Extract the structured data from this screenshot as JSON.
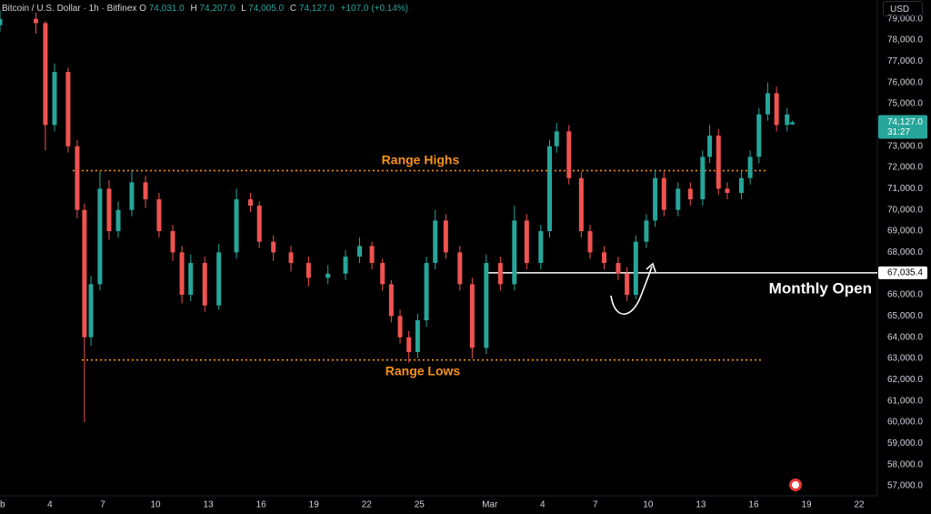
{
  "header": {
    "symbol": "Bitcoin / U.S. Dollar · 1h · Bitfinex",
    "ohlc": [
      {
        "label": "O",
        "value": "74,031.0"
      },
      {
        "label": "H",
        "value": "74,207.0"
      },
      {
        "label": "L",
        "value": "74,005.0"
      },
      {
        "label": "C",
        "value": "74,127.0"
      }
    ],
    "change": "+107.0 (+0.14%)"
  },
  "currency": "USD",
  "chart_data": {
    "type": "candlestick",
    "x": [
      0.16,
      2.2,
      2.74,
      3.26,
      4.03,
      4.55,
      4.96,
      5.33,
      5.84,
      6.36,
      6.88,
      7.65,
      8.43,
      9.2,
      9.98,
      10.5,
      11.0,
      11.8,
      12.6,
      13.6,
      14.4,
      14.9,
      15.7,
      16.7,
      17.7,
      18.8,
      19.8,
      20.6,
      21.3,
      21.9,
      22.4,
      22.9,
      23.4,
      23.9,
      24.4,
      24.9,
      25.5,
      26.3,
      27.0,
      27.8,
      28.6,
      29.4,
      30.1,
      30.9,
      31.4,
      31.8,
      32.5,
      33.2,
      33.7,
      34.5,
      35.3,
      35.8,
      36.3,
      36.9,
      37.4,
      37.9,
      38.7,
      39.4,
      40.1,
      40.5,
      41.0,
      41.5,
      42.3,
      42.8,
      43.3,
      43.8,
      44.3,
      44.9,
      45.2
    ],
    "open": [
      78700,
      79000,
      78800,
      74000,
      76500,
      73000,
      70000,
      64000,
      66500,
      71000,
      69000,
      70000,
      71300,
      70500,
      69000,
      68000,
      66000,
      67500,
      65500,
      68000,
      70500,
      70200,
      68500,
      68000,
      67500,
      66800,
      67000,
      67800,
      68300,
      67500,
      66500,
      65000,
      64000,
      63300,
      64800,
      67500,
      69500,
      68000,
      66500,
      63500,
      67500,
      66500,
      69500,
      67500,
      69000,
      73000,
      73700,
      71500,
      69000,
      68000,
      67500,
      67000,
      66000,
      68500,
      69500,
      71500,
      70000,
      71000,
      70500,
      72500,
      73500,
      71000,
      70800,
      71500,
      72500,
      74500,
      75500,
      74000,
      74031
    ],
    "high": [
      79400,
      79300,
      78900,
      76900,
      76700,
      73300,
      70300,
      66900,
      71800,
      71400,
      70400,
      71900,
      71600,
      70800,
      69300,
      68300,
      67900,
      67800,
      68400,
      71000,
      70800,
      70400,
      68800,
      68300,
      67800,
      67400,
      68100,
      68700,
      68500,
      67700,
      66700,
      65300,
      64300,
      65100,
      67800,
      70000,
      69800,
      68300,
      66800,
      67900,
      67800,
      70200,
      69800,
      69300,
      73300,
      74100,
      74000,
      71800,
      69300,
      68300,
      67800,
      67300,
      68800,
      69800,
      71900,
      71800,
      71300,
      71300,
      72800,
      74000,
      73800,
      71300,
      71800,
      72800,
      74800,
      76000,
      75800,
      74800,
      74207
    ],
    "low": [
      78400,
      78300,
      72800,
      73700,
      72700,
      69600,
      60000,
      63600,
      66200,
      68600,
      68700,
      69700,
      70100,
      68700,
      67600,
      65600,
      65700,
      65200,
      65300,
      67700,
      69900,
      68200,
      67600,
      67100,
      66400,
      66500,
      66700,
      67500,
      67200,
      66200,
      64700,
      63700,
      62800,
      63000,
      64500,
      67200,
      67700,
      66200,
      63000,
      63200,
      66200,
      66200,
      67200,
      67200,
      68700,
      72700,
      71200,
      68700,
      67700,
      67200,
      66700,
      65700,
      65800,
      68200,
      69200,
      69700,
      69700,
      70200,
      70200,
      72200,
      70700,
      70500,
      70500,
      71200,
      72200,
      74200,
      73700,
      73700,
      74005
    ],
    "close": [
      79000,
      78800,
      74000,
      76500,
      73000,
      70000,
      64000,
      66500,
      71000,
      69000,
      70000,
      71300,
      70500,
      69000,
      68000,
      66000,
      67500,
      65500,
      68000,
      70500,
      70200,
      68500,
      68000,
      67500,
      66800,
      67000,
      67800,
      68300,
      67500,
      66500,
      65000,
      64000,
      63300,
      64800,
      67500,
      69500,
      68000,
      66500,
      63500,
      67500,
      66500,
      69500,
      67500,
      69000,
      73000,
      73700,
      71500,
      69000,
      68000,
      67500,
      67000,
      66000,
      68500,
      69500,
      71500,
      70000,
      71000,
      70500,
      72500,
      73500,
      71000,
      70800,
      71500,
      72500,
      74500,
      75500,
      74000,
      74500,
      74127
    ],
    "up_color": "#26a69a",
    "down_color": "#ef5350",
    "xlim": [
      0.16,
      50.03
    ],
    "xticks": [
      {
        "value": 0,
        "label": "Feb"
      },
      {
        "value": 3,
        "label": "4"
      },
      {
        "value": 6,
        "label": "7"
      },
      {
        "value": 9,
        "label": "10"
      },
      {
        "value": 12,
        "label": "13"
      },
      {
        "value": 15,
        "label": "16"
      },
      {
        "value": 18,
        "label": "19"
      },
      {
        "value": 21,
        "label": "22"
      },
      {
        "value": 24,
        "label": "25"
      },
      {
        "value": 28,
        "label": "Mar"
      },
      {
        "value": 31,
        "label": "4"
      },
      {
        "value": 34,
        "label": "7"
      },
      {
        "value": 37,
        "label": "10"
      },
      {
        "value": 40,
        "label": "13"
      },
      {
        "value": 43,
        "label": "16"
      },
      {
        "value": 46,
        "label": "19"
      },
      {
        "value": 49,
        "label": "22"
      }
    ],
    "ylim": [
      56530,
      79890
    ],
    "yticks": [
      {
        "value": 57000,
        "label": "57,000.0"
      },
      {
        "value": 58000,
        "label": "58,000.0"
      },
      {
        "value": 59000,
        "label": "59,000.0"
      },
      {
        "value": 60000,
        "label": "60,000.0"
      },
      {
        "value": 61000,
        "label": "61,000.0"
      },
      {
        "value": 62000,
        "label": "62,000.0"
      },
      {
        "value": 63000,
        "label": "63,000.0"
      },
      {
        "value": 64000,
        "label": "64,000.0"
      },
      {
        "value": 65000,
        "label": "65,000.0"
      },
      {
        "value": 66000,
        "label": "66,000.0"
      },
      {
        "value": 67000,
        "label": "67,000.0"
      },
      {
        "value": 68000,
        "label": "68,000.0"
      },
      {
        "value": 69000,
        "label": "69,000.0"
      },
      {
        "value": 70000,
        "label": "70,000.0"
      },
      {
        "value": 71000,
        "label": "71,000.0"
      },
      {
        "value": 72000,
        "label": "72,000.0"
      },
      {
        "value": 73000,
        "label": "73,000.0"
      },
      {
        "value": 74000,
        "label": "74,000.0"
      },
      {
        "value": 75000,
        "label": "75,000.0"
      },
      {
        "value": 76000,
        "label": "76,000.0"
      },
      {
        "value": 77000,
        "label": "77,000.0"
      },
      {
        "value": 78000,
        "label": "78,000.0"
      },
      {
        "value": 79000,
        "label": "79,000.0"
      }
    ],
    "last_price": {
      "value": 74127,
      "label": "74,127.0"
    },
    "countdown": "31:27",
    "levels": [
      {
        "name": "Range Highs",
        "value": 71850,
        "color": "#f7931a",
        "style": "dotted",
        "from": 4.29,
        "to": 43.83
      },
      {
        "name": "Range Lows",
        "value": 62930,
        "color": "#f7931a",
        "style": "dotted",
        "from": 4.81,
        "to": 43.57
      },
      {
        "name": "Monthly Open",
        "value": 67035.4,
        "label": "67,035.4",
        "color": "#ffffff",
        "style": "solid",
        "from": 27.9,
        "to": 50.03
      }
    ]
  }
}
